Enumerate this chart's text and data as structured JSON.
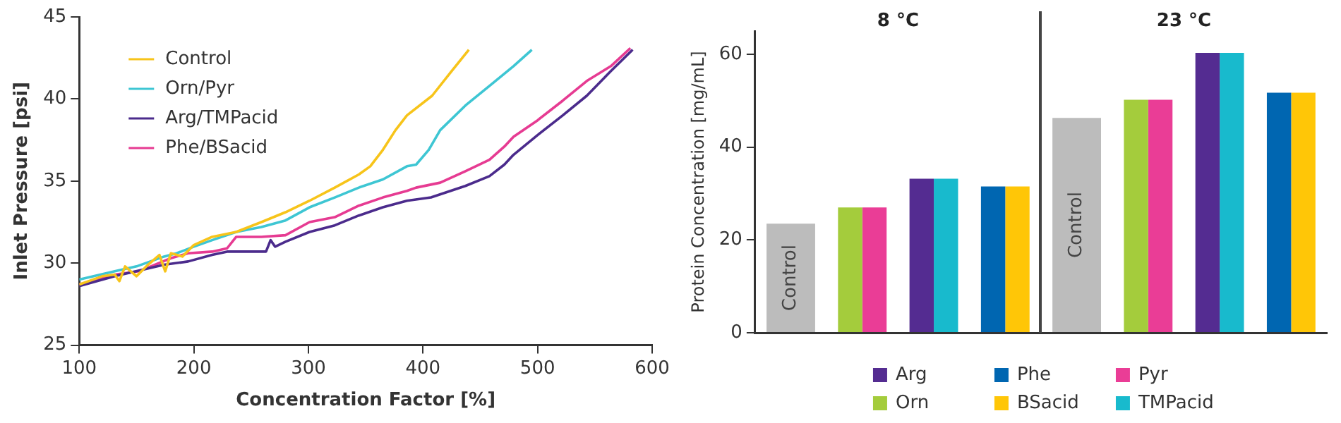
{
  "chart_data": [
    {
      "type": "line",
      "xlabel": "Concentration Factor [%]",
      "ylabel": "Inlet Pressure [psi]",
      "xlim": [
        100,
        600
      ],
      "xticks": [
        100,
        200,
        300,
        400,
        500,
        600
      ],
      "ylim": [
        25,
        45
      ],
      "yticks": [
        25,
        30,
        35,
        40,
        45
      ],
      "legend": "top left",
      "series": [
        {
          "name": "Control",
          "color": "#f7c41a",
          "x": [
            100,
            120,
            131,
            135,
            140,
            150,
            160,
            170,
            175,
            180,
            190,
            200,
            216,
            237,
            259,
            280,
            301,
            323,
            344,
            354,
            365,
            376,
            386,
            408,
            425,
            440
          ],
          "values": [
            28.7,
            29.2,
            29.3,
            28.9,
            29.8,
            29.2,
            29.9,
            30.5,
            29.5,
            30.6,
            30.4,
            31.1,
            31.6,
            31.9,
            32.5,
            33.1,
            33.8,
            34.6,
            35.4,
            35.9,
            36.9,
            38.1,
            39.0,
            40.2,
            41.7,
            43.0
          ]
        },
        {
          "name": "Orn/Pyr",
          "color": "#3ec6d3",
          "x": [
            100,
            131,
            150,
            174,
            185,
            200,
            216,
            237,
            259,
            280,
            301,
            323,
            344,
            365,
            386,
            394,
            405,
            415,
            437,
            458,
            479,
            495
          ],
          "values": [
            29.0,
            29.5,
            29.8,
            30.4,
            30.6,
            31.0,
            31.4,
            31.9,
            32.2,
            32.6,
            33.4,
            34.0,
            34.6,
            35.1,
            35.9,
            36.0,
            36.9,
            38.1,
            39.6,
            40.8,
            42.0,
            43.0
          ]
        },
        {
          "name": "Arg/TMPacid",
          "color": "#4b2b8c",
          "x": [
            100,
            131,
            174,
            195,
            216,
            229,
            263,
            267,
            271,
            280,
            301,
            323,
            344,
            365,
            386,
            407,
            437,
            458,
            471,
            479,
            500,
            522,
            543,
            564,
            583
          ],
          "values": [
            28.6,
            29.2,
            29.9,
            30.1,
            30.5,
            30.7,
            30.7,
            31.4,
            31.0,
            31.3,
            31.9,
            32.3,
            32.9,
            33.4,
            33.8,
            34.0,
            34.7,
            35.3,
            36.0,
            36.6,
            37.8,
            39.0,
            40.2,
            41.7,
            43.0
          ]
        },
        {
          "name": "Phe/BSacid",
          "color": "#e63b92",
          "x": [
            100,
            131,
            152,
            180,
            195,
            216,
            229,
            237,
            259,
            280,
            301,
            323,
            344,
            365,
            386,
            394,
            415,
            437,
            458,
            471,
            479,
            500,
            522,
            543,
            564,
            581
          ],
          "values": [
            28.7,
            29.3,
            29.5,
            30.3,
            30.6,
            30.7,
            30.9,
            31.6,
            31.6,
            31.7,
            32.5,
            32.8,
            33.5,
            34.0,
            34.4,
            34.6,
            34.9,
            35.6,
            36.3,
            37.1,
            37.7,
            38.7,
            39.9,
            41.1,
            42.0,
            43.1
          ]
        }
      ]
    },
    {
      "type": "bar",
      "ylabel": "Protein Concentration [mg/mL]",
      "categories": [
        null,
        null,
        null,
        null,
        null,
        null,
        null,
        null
      ],
      "ylim": [
        0,
        65
      ],
      "yticks": [
        0,
        20,
        40,
        60
      ],
      "tick_labels": "y",
      "legend": "bottom",
      "annotations": [
        "8 °C",
        "23 °C"
      ],
      "series": [
        {
          "name": "Control",
          "color": "#bcbcbc",
          "values": [
            23.5,
            null,
            null,
            null,
            46.3,
            null,
            null,
            null
          ]
        },
        {
          "name": "Arg",
          "color": "#542c91",
          "values": [
            null,
            null,
            33.2,
            null,
            null,
            null,
            60.3,
            null
          ]
        },
        {
          "name": "Orn",
          "color": "#a4cc3c",
          "values": [
            null,
            27.0,
            null,
            null,
            null,
            50.2,
            null,
            null
          ]
        },
        {
          "name": "Phe",
          "color": "#0066b1",
          "values": [
            null,
            null,
            null,
            31.5,
            null,
            null,
            null,
            51.7
          ]
        },
        {
          "name": "BSacid",
          "color": "#ffc607",
          "values": [
            null,
            null,
            null,
            31.5,
            null,
            null,
            null,
            51.7
          ]
        },
        {
          "name": "Pyr",
          "color": "#ea3d96",
          "values": [
            null,
            27.0,
            null,
            null,
            null,
            50.2,
            null,
            null
          ]
        },
        {
          "name": "TMPacid",
          "color": "#18bacd",
          "values": [
            null,
            null,
            33.2,
            null,
            null,
            null,
            60.3,
            null
          ]
        }
      ]
    }
  ]
}
